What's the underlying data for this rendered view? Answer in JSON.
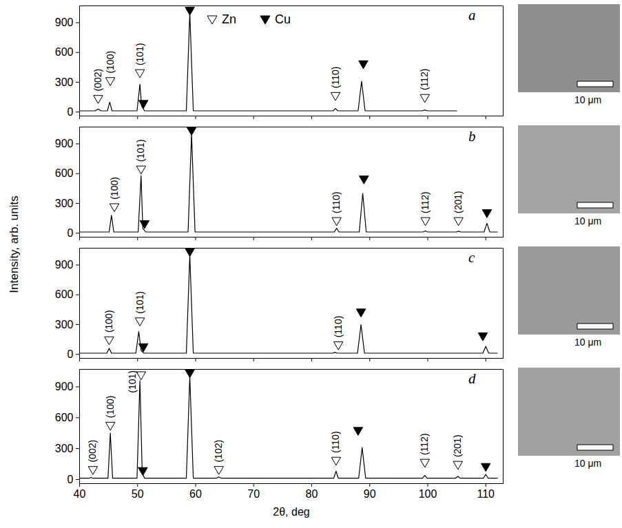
{
  "ylabel": "Intensity, arb. units",
  "legend": "top",
  "markers": [
    {
      "name": "Zn",
      "marker": "triangle-open"
    },
    {
      "name": "Cu",
      "marker": "triangle-filled"
    }
  ],
  "chart_data": [
    {
      "type": "line",
      "panel": "a",
      "color": "#000000",
      "tick_labels": "y",
      "xlim": [
        40,
        113
      ],
      "ylim": [
        -40,
        1070
      ],
      "xticks": [
        40,
        50,
        60,
        70,
        80,
        90,
        100,
        110
      ],
      "yticks": [
        0,
        300,
        600,
        900
      ],
      "x": [
        40,
        42.7,
        43.2,
        43.7,
        44.8,
        45.2,
        45.6,
        49.9,
        50.4,
        50.7,
        51.2,
        58.4,
        59.0,
        59.6,
        83.7,
        84.1,
        84.5,
        88.0,
        88.6,
        89.2,
        99.0,
        99.5,
        100.0,
        105
      ],
      "values": [
        12,
        12,
        30,
        12,
        12,
        100,
        12,
        12,
        280,
        60,
        12,
        12,
        1000,
        12,
        12,
        35,
        12,
        12,
        310,
        12,
        12,
        20,
        12,
        12
      ],
      "annotations": [
        {
          "x": 43.2,
          "y": 140,
          "phase": "Zn",
          "label": "(002)"
        },
        {
          "x": 45.3,
          "y": 320,
          "phase": "Zn",
          "label": "(100)"
        },
        {
          "x": 50.4,
          "y": 400,
          "phase": "Zn",
          "label": "(101)"
        },
        {
          "x": 51.0,
          "y": 90,
          "phase": "Cu"
        },
        {
          "x": 59.0,
          "y": 1030,
          "phase": "Cu"
        },
        {
          "x": 84.1,
          "y": 170,
          "phase": "Zn",
          "label": "(110)"
        },
        {
          "x": 88.9,
          "y": 490,
          "phase": "Cu"
        },
        {
          "x": 99.5,
          "y": 150,
          "phase": "Zn",
          "label": "(112)"
        }
      ],
      "scale_bar": "10 μm"
    },
    {
      "type": "line",
      "panel": "b",
      "color": "#000000",
      "tick_labels": "y",
      "xlim": [
        40,
        113
      ],
      "ylim": [
        -40,
        1070
      ],
      "xticks": [
        40,
        50,
        60,
        70,
        80,
        90,
        100,
        110
      ],
      "yticks": [
        0,
        300,
        600,
        900
      ],
      "x": [
        40,
        45.1,
        45.5,
        45.9,
        50.1,
        50.6,
        50.9,
        51.4,
        58.7,
        59.3,
        59.9,
        83.9,
        84.3,
        84.7,
        88.2,
        88.8,
        89.4,
        99.2,
        99.6,
        100.0,
        104.9,
        105.3,
        105.7,
        109.7,
        110.2,
        110.7,
        112
      ],
      "values": [
        12,
        12,
        180,
        12,
        12,
        580,
        50,
        12,
        12,
        1000,
        12,
        12,
        50,
        12,
        12,
        400,
        12,
        12,
        22,
        12,
        12,
        20,
        12,
        12,
        100,
        12,
        12
      ],
      "annotations": [
        {
          "x": 46.0,
          "y": 270,
          "phase": "Zn",
          "label": "(100)"
        },
        {
          "x": 50.6,
          "y": 650,
          "phase": "Zn",
          "label": "(101)"
        },
        {
          "x": 51.2,
          "y": 100,
          "phase": "Cu"
        },
        {
          "x": 59.3,
          "y": 1040,
          "phase": "Cu"
        },
        {
          "x": 84.3,
          "y": 130,
          "phase": "Zn",
          "label": "(110)"
        },
        {
          "x": 89.0,
          "y": 550,
          "phase": "Cu"
        },
        {
          "x": 99.6,
          "y": 130,
          "phase": "Zn",
          "label": "(112)"
        },
        {
          "x": 105.3,
          "y": 130,
          "phase": "Zn",
          "label": "(201)"
        },
        {
          "x": 110.2,
          "y": 210,
          "phase": "Cu"
        }
      ],
      "scale_bar": "10 μm"
    },
    {
      "type": "line",
      "panel": "c",
      "color": "#000000",
      "tick_labels": "y",
      "xlim": [
        40,
        113
      ],
      "ylim": [
        -40,
        1070
      ],
      "xticks": [
        40,
        50,
        60,
        70,
        80,
        90,
        100,
        110
      ],
      "yticks": [
        0,
        300,
        600,
        900
      ],
      "x": [
        40,
        44.7,
        45.1,
        45.5,
        49.7,
        50.2,
        50.6,
        51.1,
        58.4,
        59.0,
        59.6,
        83.6,
        84.0,
        84.4,
        87.9,
        88.5,
        89.1,
        109.5,
        110.0,
        110.5,
        112
      ],
      "values": [
        12,
        12,
        60,
        12,
        12,
        230,
        40,
        12,
        12,
        1000,
        12,
        12,
        20,
        12,
        12,
        300,
        12,
        12,
        80,
        12,
        12
      ],
      "annotations": [
        {
          "x": 45.1,
          "y": 150,
          "phase": "Zn",
          "label": "(100)"
        },
        {
          "x": 50.4,
          "y": 340,
          "phase": "Zn",
          "label": "(101)"
        },
        {
          "x": 51.0,
          "y": 80,
          "phase": "Cu"
        },
        {
          "x": 59.0,
          "y": 1040,
          "phase": "Cu"
        },
        {
          "x": 84.6,
          "y": 100,
          "phase": "Zn",
          "label": "(110)"
        },
        {
          "x": 88.5,
          "y": 430,
          "phase": "Cu"
        },
        {
          "x": 109.5,
          "y": 190,
          "phase": "Cu"
        }
      ],
      "scale_bar": "10 μm"
    },
    {
      "type": "line",
      "panel": "d",
      "color": "#000000",
      "xlabel": "2θ, deg",
      "xlim": [
        40,
        113
      ],
      "ylim": [
        -40,
        1070
      ],
      "xticks": [
        40,
        50,
        60,
        70,
        80,
        90,
        100,
        110
      ],
      "yticks": [
        0,
        300,
        600,
        900
      ],
      "x": [
        40,
        41.7,
        42.0,
        42.3,
        44.9,
        45.3,
        45.7,
        49.9,
        50.4,
        50.8,
        51.2,
        58.4,
        59.0,
        59.6,
        63.6,
        64.0,
        64.4,
        83.8,
        84.2,
        84.6,
        88.1,
        88.7,
        89.3,
        99.1,
        99.5,
        99.9,
        104.8,
        105.2,
        105.6,
        109.6,
        110.0,
        110.4,
        112
      ],
      "values": [
        12,
        12,
        20,
        12,
        12,
        450,
        12,
        12,
        960,
        60,
        12,
        12,
        1000,
        12,
        12,
        25,
        12,
        12,
        80,
        12,
        12,
        310,
        12,
        12,
        40,
        12,
        12,
        30,
        12,
        12,
        50,
        12,
        12
      ],
      "annotations": [
        {
          "x": 42.3,
          "y": 100,
          "phase": "Zn",
          "label": "(002)"
        },
        {
          "x": 45.3,
          "y": 530,
          "phase": "Zn",
          "label": "(100)"
        },
        {
          "x": 50.6,
          "y": 1020,
          "phase": "Zn",
          "label": "(101)"
        },
        {
          "x": 50.9,
          "y": 90,
          "phase": "Cu"
        },
        {
          "x": 59.0,
          "y": 1040,
          "phase": "Cu"
        },
        {
          "x": 64.0,
          "y": 100,
          "phase": "Zn",
          "label": "(102)"
        },
        {
          "x": 84.2,
          "y": 190,
          "phase": "Zn",
          "label": "(110)"
        },
        {
          "x": 88.0,
          "y": 480,
          "phase": "Cu"
        },
        {
          "x": 99.5,
          "y": 170,
          "phase": "Zn",
          "label": "(112)"
        },
        {
          "x": 105.2,
          "y": 150,
          "phase": "Zn",
          "label": "(201)"
        },
        {
          "x": 110.0,
          "y": 130,
          "phase": "Cu"
        }
      ],
      "scale_bar": "10 μm"
    }
  ]
}
